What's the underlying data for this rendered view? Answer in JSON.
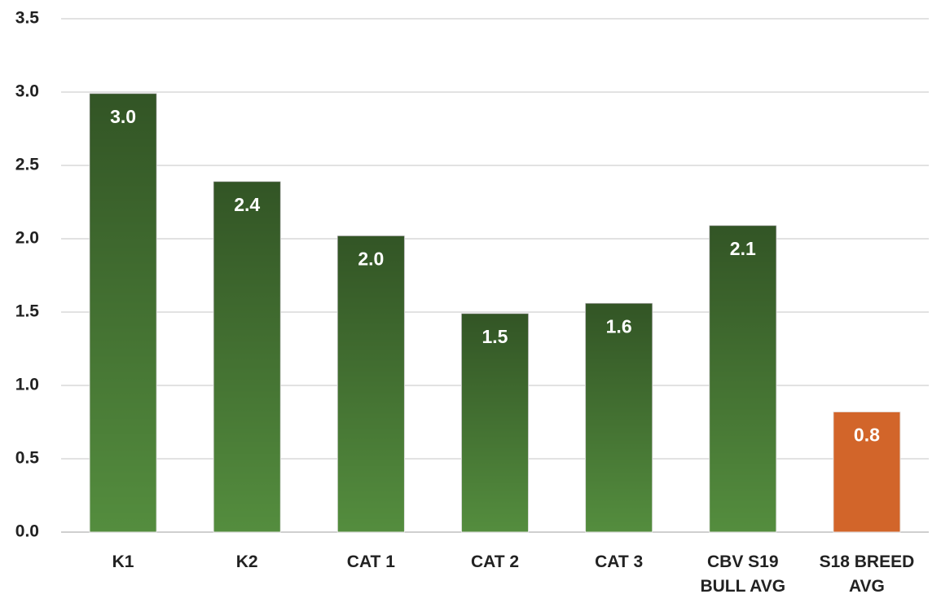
{
  "chart_data": {
    "type": "bar",
    "categories": [
      "K1",
      "K2",
      "CAT 1",
      "CAT 2",
      "CAT 3",
      "CBV S19 BULL AVG",
      "S18 BREED AVG"
    ],
    "values": [
      2.99,
      2.39,
      2.02,
      1.49,
      1.56,
      2.09,
      0.82
    ],
    "value_labels": [
      "3.0",
      "2.4",
      "2.0",
      "1.5",
      "1.6",
      "2.1",
      "0.8"
    ],
    "colors": [
      "#548d3e",
      "#548d3e",
      "#548d3e",
      "#548d3e",
      "#548d3e",
      "#548d3e",
      "#d2652a"
    ],
    "ylim": [
      0,
      3.5
    ],
    "yticks": [
      {
        "value": 0,
        "label": "0.0"
      },
      0.5,
      {
        "value": 1,
        "label": "1.0"
      },
      1.5,
      {
        "value": 2,
        "label": "2.0"
      },
      2.5,
      {
        "value": 3,
        "label": "3.0"
      },
      3.5
    ],
    "grid": true
  }
}
